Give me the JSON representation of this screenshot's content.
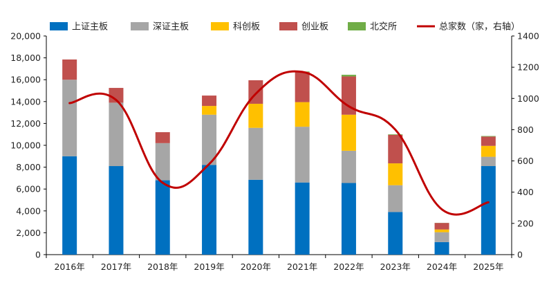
{
  "chart_data": {
    "type": "bar",
    "stacked": true,
    "categories": [
      "2016年",
      "2017年",
      "2018年",
      "2019年",
      "2020年",
      "2021年",
      "2022年",
      "2023年",
      "2024年",
      "2025年"
    ],
    "series": [
      {
        "name": "上证主板",
        "color": "#0070C0",
        "values": [
          9000,
          8100,
          6800,
          8200,
          6850,
          6600,
          6550,
          3900,
          1150,
          8100
        ]
      },
      {
        "name": "深证主板",
        "color": "#A6A6A6",
        "values": [
          7000,
          5800,
          3400,
          4600,
          4750,
          5100,
          2950,
          2450,
          900,
          850
        ]
      },
      {
        "name": "科创板",
        "color": "#FFC000",
        "values": [
          0,
          0,
          0,
          800,
          2200,
          2250,
          3300,
          2000,
          250,
          1000
        ]
      },
      {
        "name": "创业板",
        "color": "#C0504D",
        "values": [
          1850,
          1350,
          1000,
          950,
          2150,
          2750,
          3500,
          2600,
          600,
          850
        ]
      },
      {
        "name": "北交所",
        "color": "#70AD47",
        "values": [
          0,
          0,
          0,
          0,
          0,
          50,
          150,
          50,
          10,
          50
        ]
      }
    ],
    "line": {
      "name": "总家数（家，右轴）",
      "color": "#C00000",
      "axis": "right",
      "values": [
        970,
        990,
        460,
        580,
        1030,
        1170,
        950,
        800,
        290,
        335
      ]
    },
    "y_left": {
      "min": 0,
      "max": 20000,
      "step": 2000,
      "ticks": [
        "0",
        "2,000",
        "4,000",
        "6,000",
        "8,000",
        "10,000",
        "12,000",
        "14,000",
        "16,000",
        "18,000",
        "20,000"
      ]
    },
    "y_right": {
      "min": 0,
      "max": 1400,
      "step": 200,
      "ticks": [
        "0",
        "200",
        "400",
        "600",
        "800",
        "1000",
        "1200",
        "1400"
      ]
    },
    "legend_position": "top"
  }
}
